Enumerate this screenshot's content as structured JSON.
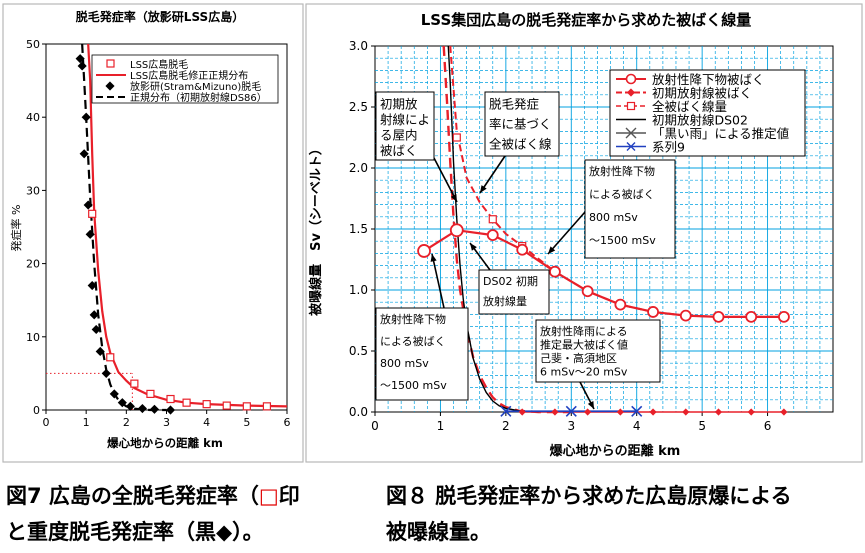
{
  "chart_data": [
    {
      "type": "scatter",
      "title": "脱毛発症率（放影研LSS広島）",
      "xlabel": "爆心地からの距離 km",
      "ylabel": "発症率 %",
      "xlim": [
        0,
        6
      ],
      "ylim": [
        0,
        50
      ],
      "xticks": [
        "0",
        "1",
        "2",
        "3",
        "4",
        "5",
        "6"
      ],
      "yticks": [
        "0",
        "10",
        "20",
        "30",
        "40",
        "50"
      ],
      "grid": false,
      "legend": [
        "LSS広島脱毛",
        "LSS広島脱毛修正正規分布",
        "放影研(Stram&Mizuno)脱毛",
        "正規分布（初期放射線DS86）"
      ],
      "colors": {
        "red": "#e8202a",
        "black": "#000000",
        "dotted": "#e8202a"
      },
      "series": [
        {
          "name": "LSS広島脱毛",
          "marker": "open-square",
          "x": [
            1.15,
            1.6,
            2.2,
            2.6,
            3.1,
            3.5,
            4.0,
            4.5,
            5.0,
            5.5
          ],
          "y": [
            26.8,
            7.2,
            3.6,
            2.2,
            1.5,
            1.0,
            0.8,
            0.6,
            0.5,
            0.5
          ]
        },
        {
          "name": "LSS広島脱毛修正正規分布",
          "marker": "line",
          "x": [
            1.05,
            1.1,
            1.15,
            1.2,
            1.3,
            1.4,
            1.5,
            1.6,
            1.8,
            2.0,
            2.2,
            2.5,
            3.0,
            3.5,
            4.0,
            4.5,
            5.0,
            5.5,
            6.0
          ],
          "y": [
            50,
            45,
            35,
            27,
            19,
            13.5,
            10,
            7.8,
            5.2,
            4.0,
            3.0,
            2.2,
            1.4,
            1.0,
            0.8,
            0.7,
            0.6,
            0.55,
            0.5
          ]
        },
        {
          "name": "放影研(Stram&Mizuno)脱毛",
          "marker": "filled-diamond",
          "x": [
            0.85,
            0.9,
            0.95,
            1.0,
            1.05,
            1.1,
            1.15,
            1.2,
            1.25,
            1.35,
            1.5,
            1.7,
            1.9,
            2.1,
            2.4,
            2.7,
            3.1
          ],
          "y": [
            48,
            47,
            35,
            40,
            28,
            24,
            17,
            13,
            11,
            8,
            5,
            2.2,
            1.0,
            0.5,
            0.2,
            0.1,
            0.0
          ]
        },
        {
          "name": "正規分布（初期放射線DS86）",
          "marker": "dashed-line",
          "x": [
            0.9,
            1.0,
            1.1,
            1.2,
            1.3,
            1.4,
            1.5,
            1.6,
            1.7,
            1.8,
            1.9,
            2.0,
            2.2,
            2.4,
            2.6,
            3.0
          ],
          "y": [
            50,
            40,
            29,
            20,
            13,
            8.5,
            5.5,
            3.5,
            2.2,
            1.4,
            0.9,
            0.5,
            0.2,
            0.05,
            0.0,
            0.0
          ]
        }
      ],
      "reference_lines": [
        {
          "style": "dotted",
          "x": [
            0,
            2.15
          ],
          "y": [
            5,
            5
          ]
        },
        {
          "style": "dotted",
          "x": [
            2.15,
            2.15
          ],
          "y": [
            0,
            5
          ]
        }
      ]
    },
    {
      "type": "line",
      "title": "LSS集団広島の脱毛発症率から求めた被ばく線量",
      "xlabel": "爆心地からの距離 km",
      "ylabel": "被曝線量　Sv（シーベルト）",
      "xlim": [
        0,
        7
      ],
      "ylim": [
        0,
        3.0
      ],
      "xticks": [
        "0",
        "1",
        "2",
        "3",
        "4",
        "5",
        "6"
      ],
      "yticks": [
        "0.0",
        "0.5",
        "1.0",
        "1.5",
        "2.0",
        "2.5",
        "3.0"
      ],
      "grid": true,
      "legend": [
        "放射性降下物被ばく",
        "初期放射線被ばく",
        "全被ばく線量",
        "初期放射線DS02",
        "「黒い雨」による推定値",
        "系列9"
      ],
      "colors": {
        "red": "#e8202a",
        "grid": "#00a0e0",
        "blue": "#2040c0",
        "black": "#000000"
      },
      "series": [
        {
          "name": "放射性降下物被ばく",
          "marker": "open-circle-solid-red",
          "x": [
            0.75,
            1.25,
            1.8,
            2.25,
            2.75,
            3.25,
            3.75,
            4.25,
            4.75,
            5.25,
            5.75,
            6.25
          ],
          "y": [
            1.32,
            1.49,
            1.45,
            1.33,
            1.15,
            0.99,
            0.88,
            0.82,
            0.79,
            0.78,
            0.78,
            0.78
          ]
        },
        {
          "name": "初期放射線被ばく",
          "marker": "dashed-red",
          "x": [
            1.05,
            1.1,
            1.15,
            1.2,
            1.25,
            1.3,
            1.4,
            1.5,
            1.6,
            1.7,
            1.8,
            1.9,
            2.0,
            2.2,
            2.5,
            3.0
          ],
          "y": [
            3.0,
            2.55,
            2.05,
            1.6,
            1.25,
            1.0,
            0.68,
            0.45,
            0.3,
            0.2,
            0.12,
            0.07,
            0.04,
            0.01,
            0.0,
            0.0
          ]
        },
        {
          "name": "全被ばく線量",
          "marker": "open-square-dashed-red",
          "x": [
            1.25,
            1.8,
            2.25,
            2.75,
            3.25,
            3.75,
            4.25,
            4.75,
            5.25,
            5.75,
            6.25
          ],
          "y": [
            2.25,
            1.58,
            1.36,
            1.15,
            0.99,
            0.88,
            0.82,
            0.79,
            0.78,
            0.78,
            0.78
          ],
          "line_x": [
            1.15,
            1.25,
            1.4,
            1.6,
            1.8,
            2.0,
            2.25,
            2.75,
            3.25,
            3.75,
            4.25,
            4.75,
            5.25,
            5.75,
            6.25
          ],
          "line_y": [
            3.0,
            2.3,
            1.92,
            1.72,
            1.58,
            1.46,
            1.36,
            1.15,
            0.99,
            0.88,
            0.82,
            0.79,
            0.78,
            0.78,
            0.78
          ]
        },
        {
          "name": "初期放射線DS02",
          "marker": "solid-black",
          "x": [
            1.12,
            1.15,
            1.2,
            1.25,
            1.3,
            1.35,
            1.4,
            1.5,
            1.6,
            1.7,
            1.8,
            1.9,
            2.0,
            2.2,
            2.5
          ],
          "y": [
            3.0,
            2.7,
            2.05,
            1.58,
            1.2,
            0.92,
            0.72,
            0.44,
            0.27,
            0.16,
            0.09,
            0.05,
            0.03,
            0.01,
            0.0
          ]
        },
        {
          "name": "「黒い雨」による推定値",
          "marker": "cross-blue",
          "x": [
            2.0,
            3.0,
            4.0
          ],
          "y": [
            0.006,
            0.006,
            0.006
          ]
        },
        {
          "name": "系列9",
          "marker": "small-diamond-red",
          "x": [
            2.25,
            2.75,
            3.25,
            3.75,
            4.25,
            4.75,
            5.25,
            5.75,
            6.25
          ],
          "y": [
            0.0,
            0.0,
            0.0,
            0.0,
            0.0,
            0.0,
            0.0,
            0.0,
            0.0
          ]
        }
      ],
      "annotations": [
        {
          "lines": [
            "初期放",
            "射線によ",
            "る屋内",
            "被ばく"
          ]
        },
        {
          "lines": [
            "脱毛発症",
            "率に基づく",
            "全被ばく線"
          ]
        },
        {
          "lines": [
            "放射性降下物",
            "による被ばく",
            "800 mSv",
            "〜1500 mSv"
          ]
        },
        {
          "lines": [
            "DS02 初期",
            "放射線量"
          ]
        },
        {
          "lines": [
            "放射性降下物",
            "による被ばく",
            "800 mSv",
            "〜1500 mSv"
          ]
        },
        {
          "lines": [
            "放射性降雨による",
            "推定最大被ばく値",
            "己斐・高須地区",
            "6 mSv〜20 mSv"
          ]
        }
      ]
    }
  ],
  "captions": {
    "fig7_line1_a": "図7 広島の全脱毛発症率（",
    "fig7_line1_b": "□",
    "fig7_line1_c": "印",
    "fig7_line2": "と重度脱毛発症率（黒◆）。",
    "fig8_line1": "図８ 脱毛発症率から求めた広島原爆による",
    "fig8_line2": "被曝線量。"
  }
}
